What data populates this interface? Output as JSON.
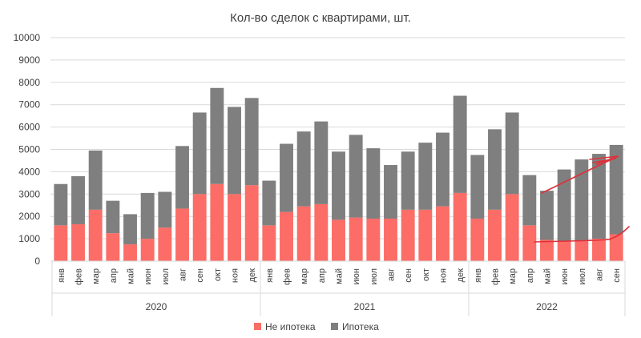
{
  "chart_data": {
    "type": "bar",
    "stacked": true,
    "title": "Кол-во сделок с квартирами, шт.",
    "ylim": [
      0,
      10000
    ],
    "yticks": [
      0,
      1000,
      2000,
      3000,
      4000,
      5000,
      6000,
      7000,
      8000,
      9000,
      10000
    ],
    "grid": true,
    "legend": "bottom",
    "colors": {
      "ne_ipoteka": "#fb6d66",
      "ipoteka": "#7f7f7f",
      "annotation": "#e0303a"
    },
    "years": [
      {
        "label": "2020",
        "months": 12
      },
      {
        "label": "2021",
        "months": 12
      },
      {
        "label": "2022",
        "months": 9
      }
    ],
    "categories": [
      "янв",
      "фев",
      "мар",
      "апр",
      "май",
      "июн",
      "июл",
      "авг",
      "сен",
      "окт",
      "ноя",
      "дек",
      "янв",
      "фев",
      "мар",
      "апр",
      "май",
      "июн",
      "июл",
      "авг",
      "сен",
      "окт",
      "ноя",
      "дек",
      "янв",
      "фев",
      "мар",
      "апр",
      "май",
      "июн",
      "июл",
      "авг",
      "сен"
    ],
    "series": [
      {
        "name": "Не ипотека",
        "values": [
          1600,
          1650,
          2300,
          1250,
          750,
          1000,
          1500,
          2350,
          3000,
          3450,
          3000,
          3400,
          1600,
          2200,
          2450,
          2550,
          1850,
          1950,
          1900,
          1900,
          2300,
          2300,
          2450,
          3050,
          1900,
          2300,
          3000,
          1600,
          950,
          900,
          900,
          1000,
          1200
        ]
      },
      {
        "name": "Ипотека",
        "values": [
          1850,
          2150,
          2650,
          1450,
          1350,
          2050,
          1600,
          2800,
          3650,
          4300,
          3900,
          3900,
          2000,
          3050,
          3350,
          3700,
          3050,
          3700,
          3150,
          2400,
          2600,
          3000,
          3300,
          4350,
          2850,
          3600,
          3650,
          2250,
          2200,
          3200,
          3650,
          3800,
          4000
        ]
      }
    ]
  }
}
